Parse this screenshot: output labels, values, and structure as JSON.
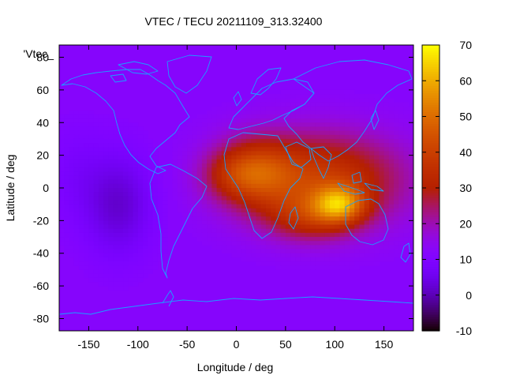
{
  "chart_data": {
    "type": "heatmap",
    "title": "VTEC / TECU 20211109_313.32400",
    "xlabel": "Longitude / deg",
    "ylabel": "Latitude / deg",
    "xlim": [
      -180,
      180
    ],
    "ylim": [
      -87.5,
      87.5
    ],
    "x_ticks": [
      -150,
      -100,
      -50,
      0,
      50,
      100,
      150
    ],
    "y_ticks": [
      -80,
      -60,
      -40,
      -20,
      0,
      20,
      40,
      60,
      80
    ],
    "colorbar": {
      "range": [
        -10,
        70
      ],
      "ticks": [
        -10,
        0,
        10,
        20,
        30,
        40,
        50,
        60,
        70
      ],
      "palette": "gnuplot-pm3d"
    },
    "legend_key": "'Vtec_",
    "background_level_tecu": 12,
    "features": [
      {
        "name": "equatorial-anomaly-asia",
        "lon": 100,
        "lat": -10,
        "peak_tecu": 62
      },
      {
        "name": "equatorial-anomaly-africa",
        "lon": 20,
        "lat": 8,
        "peak_tecu": 40
      },
      {
        "name": "southern-crest",
        "lon": 75,
        "lat": -20,
        "peak_tecu": 45
      },
      {
        "name": "pacific-minimum",
        "lon": -120,
        "lat": -10,
        "peak_tecu": 2
      }
    ]
  }
}
